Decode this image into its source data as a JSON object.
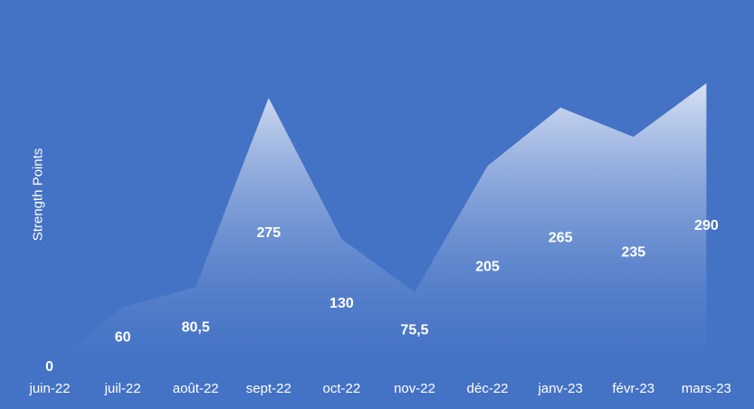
{
  "chart_data": {
    "type": "area",
    "title": "",
    "xlabel": "",
    "ylabel": "Strength Points",
    "categories": [
      "juin-22",
      "juil-22",
      "août-22",
      "sept-22",
      "oct-22",
      "nov-22",
      "déc-22",
      "janv-23",
      "févr-23",
      "mars-23"
    ],
    "values": [
      0,
      60,
      80.5,
      275,
      130,
      75.5,
      205,
      265,
      235,
      290
    ],
    "value_labels": [
      "0",
      "60",
      "80,5",
      "275",
      "130",
      "75,5",
      "205",
      "265",
      "235",
      "290"
    ],
    "ylim": [
      0,
      300
    ],
    "grid": false,
    "legend": "none"
  },
  "colors": {
    "background": "#4472C4",
    "area_top": "#dfe7f6",
    "area_bottom": "#4472C4",
    "drop_lines": "#ffffff",
    "text": "#ffffff"
  }
}
